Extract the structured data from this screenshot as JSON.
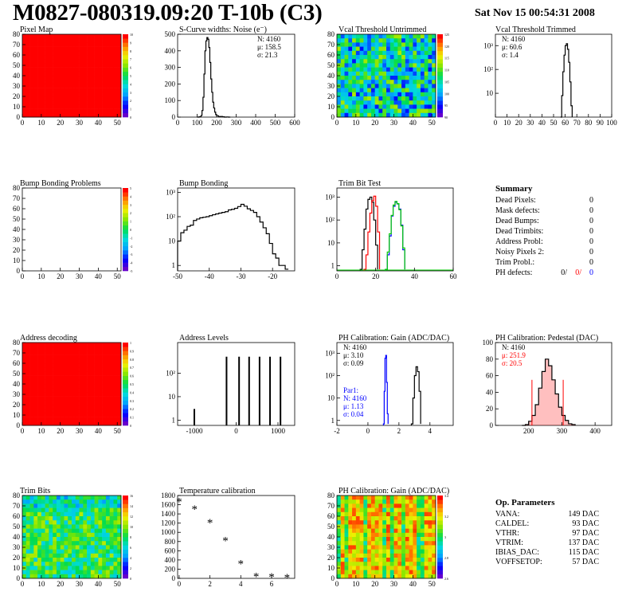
{
  "header": {
    "title": "M0827-080319.09:20 T-10b (C3)",
    "date": "Sat Nov 15 00:54:31 2008"
  },
  "colors": {
    "pixel_map_fill": "#ff0000",
    "black": "#000000",
    "red": "#ff0000",
    "blue": "#0000ff",
    "green": "#00cc00"
  },
  "chart_data": [
    {
      "id": "pixel-map",
      "type": "heatmap",
      "title": "Pixel Map",
      "xlim": [
        0,
        52
      ],
      "ylim": [
        0,
        80
      ],
      "xticks": [
        "0",
        "10",
        "20",
        "30",
        "40",
        "50"
      ],
      "yticks": [
        "0",
        "10",
        "20",
        "30",
        "40",
        "50",
        "60",
        "70",
        "80"
      ],
      "uniform_value": 10,
      "colorbar": {
        "min": 0,
        "max": 10,
        "labels": [
          "0",
          "1",
          "2",
          "3",
          "4",
          "5",
          "6",
          "7",
          "8",
          "9",
          "10"
        ]
      }
    },
    {
      "id": "scurve-noise",
      "type": "line",
      "title": "S-Curve widths: Noise (e⁻)",
      "xlim": [
        0,
        600
      ],
      "ylim": [
        0,
        500
      ],
      "xticks": [
        "0",
        "100",
        "200",
        "300",
        "400",
        "500",
        "600"
      ],
      "yticks": [
        "0",
        "100",
        "200",
        "300",
        "400",
        "500"
      ],
      "stats": [
        "N: 4160",
        "μ: 158.5",
        "σ: 21.3"
      ],
      "series": [
        {
          "x": [
            100,
            110,
            120,
            125,
            130,
            135,
            140,
            145,
            150,
            155,
            160,
            165,
            170,
            175,
            180,
            185,
            190,
            195,
            200,
            210,
            220,
            230,
            240,
            250,
            260,
            270
          ],
          "values": [
            0,
            2,
            10,
            40,
            120,
            260,
            400,
            460,
            480,
            470,
            420,
            330,
            230,
            150,
            90,
            55,
            30,
            15,
            8,
            3,
            4,
            2,
            0,
            1,
            0,
            0
          ]
        }
      ]
    },
    {
      "id": "vcal-untrimmed",
      "type": "heatmap",
      "title": "Vcal Threshold Untrimmed",
      "xlim": [
        0,
        52
      ],
      "ylim": [
        0,
        80
      ],
      "xticks": [
        "0",
        "10",
        "20",
        "30",
        "40",
        "50"
      ],
      "yticks": [
        "0",
        "10",
        "20",
        "30",
        "40",
        "50",
        "60",
        "70",
        "80"
      ],
      "colorbar": {
        "min": 88,
        "max": 128,
        "labels": [
          "90",
          "95",
          "100",
          "105",
          "110",
          "115",
          "120",
          "125"
        ]
      }
    },
    {
      "id": "vcal-trimmed",
      "type": "line",
      "title": "Vcal Threshold Trimmed",
      "log_y": true,
      "xlim": [
        0,
        100
      ],
      "ylim": [
        1,
        3000
      ],
      "xticks": [
        "0",
        "10",
        "20",
        "30",
        "40",
        "50",
        "60",
        "70",
        "80",
        "90",
        "100"
      ],
      "yticks": [
        "10",
        "10²",
        "10³"
      ],
      "stats": [
        "N: 4160",
        "μ: 60.6",
        "σ: 1.4"
      ],
      "series": [
        {
          "x": [
            56,
            57,
            58,
            59,
            60,
            61,
            62,
            63,
            64,
            65,
            66
          ],
          "values": [
            1,
            8,
            80,
            400,
            1000,
            1200,
            700,
            200,
            30,
            3,
            1
          ]
        }
      ]
    },
    {
      "id": "bump-problems",
      "type": "heatmap",
      "title": "Bump Bonding Problems",
      "xlim": [
        0,
        52
      ],
      "ylim": [
        0,
        80
      ],
      "xticks": [
        "0",
        "10",
        "20",
        "30",
        "40",
        "50"
      ],
      "yticks": [
        "0",
        "10",
        "20",
        "30",
        "40",
        "50",
        "60",
        "70",
        "80"
      ],
      "colorbar": {
        "min": -5,
        "max": 5,
        "labels": [
          "-5",
          "-4",
          "-3",
          "-2",
          "-1",
          "0",
          "1",
          "2",
          "3",
          "4",
          "5"
        ]
      }
    },
    {
      "id": "bump-bonding",
      "type": "line",
      "title": "Bump Bonding",
      "log_y": true,
      "xlim": [
        -50,
        -13
      ],
      "ylim": [
        0.6,
        1500
      ],
      "xticks": [
        "-50",
        "-40",
        "-30",
        "-20"
      ],
      "yticks": [
        "1",
        "10",
        "10²",
        "10³"
      ],
      "series": [
        {
          "x": [
            -50,
            -49,
            -48,
            -47,
            -46,
            -45,
            -44,
            -43,
            -42,
            -41,
            -40,
            -39,
            -38,
            -37,
            -36,
            -35,
            -34,
            -33,
            -32,
            -31,
            -30,
            -29,
            -28,
            -27,
            -26,
            -25,
            -24,
            -23,
            -22,
            -21,
            -20,
            -19,
            -18,
            -17,
            -16,
            -15
          ],
          "values": [
            10,
            22,
            28,
            40,
            45,
            70,
            80,
            90,
            95,
            100,
            110,
            120,
            130,
            140,
            150,
            160,
            190,
            200,
            220,
            260,
            320,
            270,
            210,
            180,
            150,
            100,
            60,
            35,
            20,
            8,
            3,
            2,
            1,
            1,
            0.7,
            0.7
          ]
        }
      ]
    },
    {
      "id": "trim-bit-test",
      "type": "line",
      "title": "Trim Bit Test",
      "log_y": true,
      "xlim": [
        0,
        60
      ],
      "ylim": [
        0.6,
        2500
      ],
      "xticks": [
        "0",
        "20",
        "40",
        "60"
      ],
      "yticks": [
        "1",
        "10",
        "10²",
        "10³"
      ],
      "series": [
        {
          "color": "black",
          "x": [
            12,
            13,
            14,
            15,
            16,
            17,
            18,
            19,
            20,
            21
          ],
          "values": [
            0.7,
            5,
            40,
            300,
            800,
            1000,
            600,
            100,
            8,
            0.7
          ]
        },
        {
          "color": "red",
          "x": [
            14,
            15,
            16,
            17,
            18,
            19,
            20,
            21,
            22
          ],
          "values": [
            0.7,
            3,
            30,
            200,
            700,
            1100,
            400,
            30,
            0.7
          ]
        },
        {
          "color": "blue",
          "x": [
            25,
            26,
            27,
            28,
            29,
            30,
            31,
            32,
            33,
            34,
            35
          ],
          "values": [
            0.7,
            3,
            20,
            150,
            400,
            600,
            500,
            300,
            60,
            5,
            0.7
          ]
        },
        {
          "color": "green",
          "x": [
            25,
            26,
            27,
            28,
            29,
            30,
            31,
            32,
            33,
            34,
            35
          ],
          "values": [
            0.7,
            4,
            25,
            160,
            450,
            650,
            520,
            280,
            55,
            6,
            0.7
          ]
        }
      ]
    },
    {
      "id": "address-decoding",
      "type": "heatmap",
      "title": "Address decoding",
      "xlim": [
        0,
        52
      ],
      "ylim": [
        0,
        80
      ],
      "xticks": [
        "0",
        "10",
        "20",
        "30",
        "40",
        "50"
      ],
      "yticks": [
        "0",
        "10",
        "20",
        "30",
        "40",
        "50",
        "60",
        "70",
        "80"
      ],
      "uniform_value": 1,
      "colorbar": {
        "min": 0,
        "max": 1,
        "labels": [
          "0",
          "0.1",
          "0.2",
          "0.3",
          "0.4",
          "0.5",
          "0.6",
          "0.7",
          "0.8",
          "0.9",
          "1"
        ]
      }
    },
    {
      "id": "address-levels",
      "type": "line",
      "title": "Address Levels",
      "log_y": true,
      "xlim": [
        -1400,
        1400
      ],
      "ylim": [
        0.6,
        2000
      ],
      "xticks": [
        "-1000",
        "0",
        "1000"
      ],
      "yticks": [
        "1",
        "10",
        "10²"
      ],
      "series": [
        {
          "x": [
            -1000,
            -230,
            70,
            310,
            560,
            810,
            1060
          ],
          "values": [
            3,
            500,
            500,
            500,
            500,
            500,
            500
          ]
        }
      ]
    },
    {
      "id": "ph-gain",
      "type": "line",
      "title": "PH Calibration: Gain (ADC/DAC)",
      "log_y": true,
      "xlim": [
        -2,
        5.5
      ],
      "ylim": [
        0.6,
        3000
      ],
      "xticks": [
        "-2",
        "0",
        "2",
        "4"
      ],
      "yticks": [
        "1",
        "10",
        "10²",
        "10³"
      ],
      "stats": [
        "N: 4160",
        "μ: 3.10",
        "σ: 0.09"
      ],
      "stats2": [
        "Par1:",
        "N: 4160",
        "μ: 1.13",
        "σ: 0.04"
      ],
      "series": [
        {
          "color": "blue",
          "x": [
            1.0,
            1.05,
            1.1,
            1.15,
            1.2,
            1.25,
            1.3
          ],
          "values": [
            0.7,
            20,
            600,
            800,
            50,
            2,
            0.7
          ]
        },
        {
          "color": "black",
          "x": [
            2.8,
            2.9,
            3.0,
            3.1,
            3.2,
            3.3,
            3.4
          ],
          "values": [
            0.7,
            10,
            100,
            250,
            150,
            20,
            0.7
          ]
        }
      ]
    },
    {
      "id": "ph-pedestal",
      "type": "line",
      "title": "PH Calibration: Pedestal (DAC)",
      "xlim": [
        100,
        450
      ],
      "ylim": [
        0,
        100
      ],
      "xticks": [
        "200",
        "300",
        "400"
      ],
      "yticks": [
        "0",
        "20",
        "40",
        "60",
        "80",
        "100"
      ],
      "stats": [
        "N: 4160",
        "μ: 251.9",
        "σ: 20.5"
      ],
      "series": [
        {
          "x": [
            180,
            190,
            200,
            210,
            220,
            230,
            240,
            250,
            260,
            270,
            280,
            290,
            300,
            310,
            320,
            330,
            340
          ],
          "values": [
            0,
            1,
            5,
            12,
            25,
            45,
            65,
            80,
            72,
            55,
            38,
            22,
            12,
            6,
            2,
            1,
            0
          ]
        }
      ],
      "cut_lines": [
        210,
        304
      ]
    },
    {
      "id": "trim-bits",
      "type": "heatmap",
      "title": "Trim Bits",
      "xlim": [
        0,
        52
      ],
      "ylim": [
        0,
        80
      ],
      "xticks": [
        "0",
        "10",
        "20",
        "30",
        "40",
        "50"
      ],
      "yticks": [
        "0",
        "10",
        "20",
        "30",
        "40",
        "50",
        "60",
        "70",
        "80"
      ],
      "colorbar": {
        "min": 0,
        "max": 16,
        "labels": [
          "0",
          "2",
          "4",
          "6",
          "8",
          "10",
          "12",
          "14",
          "16"
        ]
      }
    },
    {
      "id": "temperature-calibration",
      "type": "scatter",
      "title": "Temperature calibration",
      "xlim": [
        -0.1,
        7.5
      ],
      "ylim": [
        0,
        1800
      ],
      "xticks": [
        "0",
        "2",
        "4",
        "6"
      ],
      "yticks": [
        "0",
        "200",
        "400",
        "600",
        "800",
        "1000",
        "1200",
        "1400",
        "1600",
        "1800"
      ],
      "series": [
        {
          "x": [
            0,
            1,
            2,
            3,
            4,
            5,
            6,
            7
          ],
          "values": [
            1670,
            1510,
            1210,
            820,
            320,
            40,
            35,
            20
          ]
        }
      ]
    },
    {
      "id": "ph-gain-map",
      "type": "heatmap",
      "title": "PH Calibration: Gain (ADC/DAC)",
      "xlim": [
        0,
        52
      ],
      "ylim": [
        0,
        80
      ],
      "xticks": [
        "0",
        "10",
        "20",
        "30",
        "40",
        "50"
      ],
      "yticks": [
        "0",
        "10",
        "20",
        "30",
        "40",
        "50",
        "60",
        "70",
        "80"
      ],
      "colorbar": {
        "min": 2.5,
        "max": 3.6,
        "labels": [
          "2.6",
          "2.8",
          "3",
          "3.2",
          "3.4"
        ]
      }
    }
  ],
  "summary": {
    "title": "Summary",
    "rows": [
      {
        "label": "Dead Pixels:",
        "value": "0"
      },
      {
        "label": "Mask defects:",
        "value": "0"
      },
      {
        "label": "Dead Bumps:",
        "value": "0"
      },
      {
        "label": "Dead Trimbits:",
        "value": "0"
      },
      {
        "label": "Address Probl:",
        "value": "0"
      },
      {
        "label": "Noisy Pixels 2:",
        "value": "0"
      },
      {
        "label": "Trim Probl.:",
        "value": "0"
      }
    ],
    "ph_defects": {
      "label": "PH defects:",
      "values": [
        "0/",
        "0/",
        "0"
      ]
    }
  },
  "op_parameters": {
    "title": "Op. Parameters",
    "rows": [
      {
        "label": "VANA:",
        "value": "149 DAC"
      },
      {
        "label": "CALDEL:",
        "value": "93 DAC"
      },
      {
        "label": "VTHR:",
        "value": "97 DAC"
      },
      {
        "label": "VTRIM:",
        "value": "137 DAC"
      },
      {
        "label": "IBIAS_DAC:",
        "value": "115 DAC"
      },
      {
        "label": "VOFFSETOP:",
        "value": "57 DAC"
      }
    ]
  }
}
